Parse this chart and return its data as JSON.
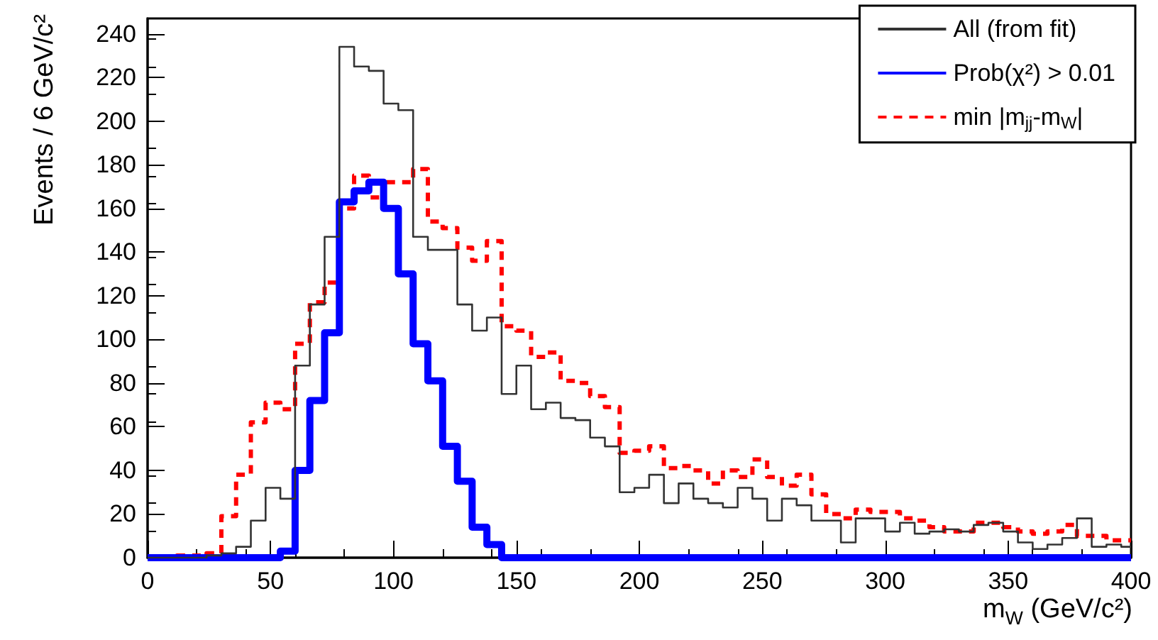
{
  "chart_data": {
    "type": "histogram",
    "xlabel": "m$_{W}$ (GeV/c²)",
    "ylabel": "Events / 6 GeV/c²",
    "bins": [
      0,
      6,
      12,
      18,
      24,
      30,
      36,
      42,
      48,
      54,
      60,
      66,
      72,
      78,
      84,
      90,
      96,
      102,
      108,
      114,
      120,
      126,
      132,
      138,
      144,
      150,
      156,
      162,
      168,
      174,
      180,
      186,
      192,
      198,
      204,
      210,
      216,
      222,
      228,
      234,
      240,
      246,
      252,
      258,
      264,
      270,
      276,
      282,
      288,
      294,
      300,
      306,
      312,
      318,
      324,
      330,
      336,
      342,
      348,
      354,
      360,
      366,
      372,
      378,
      384,
      390,
      396,
      400
    ],
    "series": [
      {
        "name": "All (from fit)",
        "color": "#333333",
        "line_style": "solid",
        "values": [
          0,
          0,
          0,
          0,
          1,
          2,
          5,
          17,
          32,
          27,
          88,
          116,
          147,
          234,
          225,
          223,
          208,
          205,
          147,
          141,
          141,
          116,
          104,
          110,
          75,
          88,
          68,
          71,
          64,
          63,
          55,
          51,
          30,
          32,
          38,
          25,
          34,
          27,
          25,
          23,
          32,
          27,
          17,
          27,
          24,
          17,
          17,
          7,
          18,
          18,
          12,
          16,
          11,
          12,
          13,
          12,
          15,
          16,
          12,
          7,
          4,
          6,
          9,
          18,
          5,
          6,
          5
        ]
      },
      {
        "name": "Prob(χ²) > 0.01",
        "color": "#0000ff",
        "line_style": "solid",
        "values": [
          0,
          0,
          0,
          0,
          0,
          0,
          0,
          0,
          0,
          3,
          40,
          72,
          103,
          163,
          168,
          172,
          160,
          130,
          98,
          81,
          51,
          35,
          14,
          6,
          0,
          0,
          0,
          0,
          0,
          0,
          0,
          0,
          0,
          0,
          0,
          0,
          0,
          0,
          0,
          0,
          0,
          0,
          0,
          0,
          0,
          0,
          0,
          0,
          0,
          0,
          0,
          0,
          0,
          0,
          0,
          0,
          0,
          0,
          0,
          0,
          0,
          0,
          0,
          0,
          0,
          0,
          0
        ]
      },
      {
        "name": "min |m$_{jj}$-m$_{W}$|",
        "color": "#ff0000",
        "line_style": "dashed",
        "values": [
          0,
          0,
          1,
          1,
          2,
          19,
          38,
          62,
          71,
          68,
          98,
          117,
          126,
          160,
          175,
          165,
          172,
          172,
          178,
          154,
          151,
          142,
          136,
          145,
          106,
          104,
          92,
          94,
          81,
          80,
          74,
          69,
          48,
          49,
          51,
          41,
          42,
          40,
          34,
          40,
          37,
          45,
          37,
          33,
          38,
          29,
          20,
          18,
          22,
          21,
          21,
          18,
          17,
          14,
          12,
          12,
          16,
          16,
          14,
          12,
          11,
          12,
          15,
          10,
          10,
          8,
          8
        ]
      }
    ],
    "xlim": [
      0,
      400
    ],
    "xticks": [
      0,
      50,
      100,
      150,
      200,
      250,
      300,
      350,
      400
    ],
    "ylim": [
      0,
      247
    ],
    "yticks": [
      0,
      20,
      40,
      60,
      80,
      100,
      120,
      140,
      160,
      180,
      200,
      220,
      240
    ],
    "grid": false,
    "legend": "top right"
  }
}
